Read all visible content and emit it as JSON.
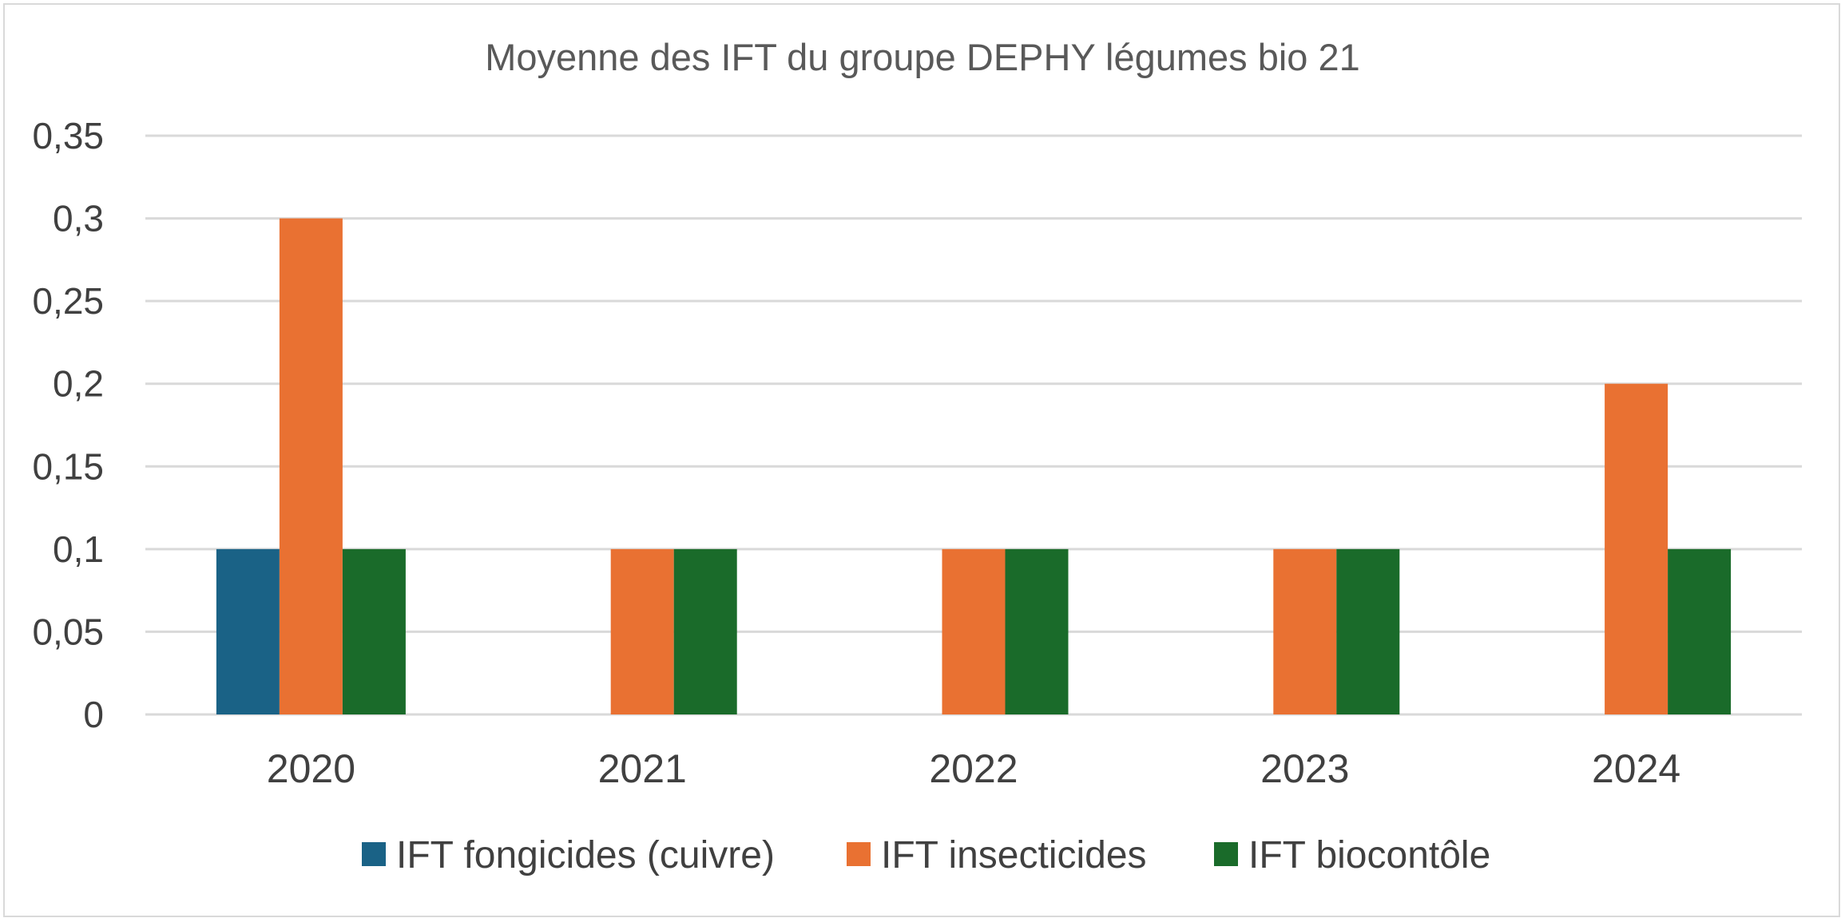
{
  "chart_data": {
    "type": "bar",
    "title": "Moyenne des IFT du groupe DEPHY légumes bio 21",
    "xlabel": "",
    "ylabel": "",
    "categories": [
      "2020",
      "2021",
      "2022",
      "2023",
      "2024"
    ],
    "series": [
      {
        "name": "IFT fongicides (cuivre)",
        "color": "#1a6286",
        "values": [
          0.1,
          0,
          0,
          0,
          0
        ]
      },
      {
        "name": "IFT insecticides",
        "color": "#e97132",
        "values": [
          0.3,
          0.1,
          0.1,
          0.1,
          0.2
        ]
      },
      {
        "name": "IFT biocontôle",
        "color": "#1a6b2a",
        "values": [
          0.1,
          0.1,
          0.1,
          0.1,
          0.1
        ]
      }
    ],
    "ylim": [
      0,
      0.35
    ],
    "yticks": [
      0,
      0.05,
      0.1,
      0.15,
      0.2,
      0.25,
      0.3,
      0.35
    ],
    "ytick_labels": [
      "0",
      "0,05",
      "0,1",
      "0,15",
      "0,2",
      "0,25",
      "0,3",
      "0,35"
    ],
    "grid": true,
    "legend_position": "bottom"
  }
}
